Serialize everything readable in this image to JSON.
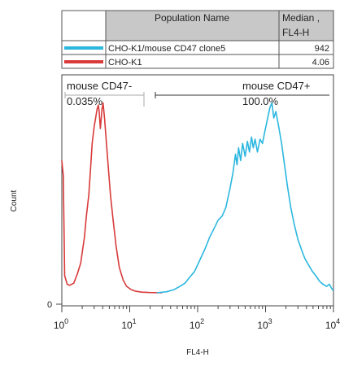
{
  "chart_data": {
    "type": "line",
    "ylabel": "Count",
    "xlabel": "FL4-H",
    "x_scale": "log",
    "xlim": [
      1,
      10000
    ],
    "y_zero_label": "0",
    "x_tick_labels": [
      {
        "base": "10",
        "exp": "0",
        "value": 1
      },
      {
        "base": "10",
        "exp": "1",
        "value": 10
      },
      {
        "base": "10",
        "exp": "2",
        "value": 100
      },
      {
        "base": "10",
        "exp": "3",
        "value": 1000
      },
      {
        "base": "10",
        "exp": "4",
        "value": 10000
      }
    ],
    "legend_table": {
      "headers": [
        "Population Name",
        "Median ,",
        "FL4-H"
      ],
      "rows": [
        {
          "name": "CHO-K1/mouse CD47 clone5",
          "median": "942",
          "color": "#2bb7e0"
        },
        {
          "name": "CHO-K1",
          "median": "4.06",
          "color": "#d93a3a"
        }
      ]
    },
    "gates": [
      {
        "label": "mouse CD47-",
        "percent": "0.035%",
        "range": [
          1,
          18
        ]
      },
      {
        "label": "mouse CD47+",
        "percent": "100.0%",
        "range": [
          18,
          10000
        ]
      }
    ],
    "series": [
      {
        "name": "CHO-K1",
        "color": "#d93a3a",
        "points": [
          [
            1.0,
            62
          ],
          [
            1.05,
            55
          ],
          [
            1.1,
            8
          ],
          [
            1.2,
            4
          ],
          [
            1.3,
            3.5
          ],
          [
            1.5,
            4.5
          ],
          [
            1.7,
            9
          ],
          [
            1.9,
            14
          ],
          [
            2.0,
            19
          ],
          [
            2.15,
            26
          ],
          [
            2.3,
            36
          ],
          [
            2.5,
            46
          ],
          [
            2.65,
            58
          ],
          [
            2.8,
            70
          ],
          [
            3.0,
            78
          ],
          [
            3.15,
            82
          ],
          [
            3.3,
            86
          ],
          [
            3.45,
            88
          ],
          [
            3.55,
            85
          ],
          [
            3.7,
            77
          ],
          [
            3.9,
            86
          ],
          [
            4.05,
            89
          ],
          [
            4.25,
            82
          ],
          [
            4.5,
            72
          ],
          [
            4.8,
            60
          ],
          [
            5.2,
            46
          ],
          [
            5.7,
            34
          ],
          [
            6.3,
            22
          ],
          [
            7.0,
            12
          ],
          [
            8.0,
            6
          ],
          [
            9.0,
            3
          ],
          [
            10.5,
            1.5
          ],
          [
            12,
            0.8
          ],
          [
            15,
            0.3
          ],
          [
            20,
            0.1
          ],
          [
            30,
            0
          ]
        ]
      },
      {
        "name": "CHO-K1/mouse CD47 clone5",
        "color": "#2bb7e0",
        "points": [
          [
            25,
            0
          ],
          [
            35,
            0.5
          ],
          [
            45,
            1.5
          ],
          [
            55,
            3
          ],
          [
            65,
            4.5
          ],
          [
            75,
            7
          ],
          [
            90,
            10
          ],
          [
            110,
            16
          ],
          [
            130,
            21
          ],
          [
            150,
            26
          ],
          [
            180,
            31
          ],
          [
            200,
            34
          ],
          [
            230,
            36
          ],
          [
            260,
            40
          ],
          [
            300,
            49
          ],
          [
            330,
            56
          ],
          [
            360,
            65
          ],
          [
            380,
            60
          ],
          [
            400,
            68
          ],
          [
            430,
            62
          ],
          [
            460,
            70
          ],
          [
            500,
            64
          ],
          [
            540,
            71
          ],
          [
            580,
            66
          ],
          [
            620,
            73
          ],
          [
            660,
            68
          ],
          [
            700,
            72
          ],
          [
            760,
            66
          ],
          [
            830,
            72
          ],
          [
            900,
            70
          ],
          [
            980,
            76
          ],
          [
            1060,
            81
          ],
          [
            1160,
            87
          ],
          [
            1240,
            89
          ],
          [
            1320,
            82
          ],
          [
            1420,
            85
          ],
          [
            1560,
            78
          ],
          [
            1720,
            70
          ],
          [
            1900,
            60
          ],
          [
            2100,
            50
          ],
          [
            2350,
            40
          ],
          [
            2650,
            32
          ],
          [
            3000,
            25
          ],
          [
            3400,
            20
          ],
          [
            3800,
            16
          ],
          [
            4300,
            13
          ],
          [
            4900,
            10
          ],
          [
            5500,
            8
          ],
          [
            6200,
            5.5
          ],
          [
            7000,
            4
          ],
          [
            7900,
            3
          ],
          [
            8700,
            4
          ],
          [
            9400,
            2
          ],
          [
            10000,
            1
          ]
        ]
      }
    ],
    "ylim": [
      0,
      90
    ]
  }
}
